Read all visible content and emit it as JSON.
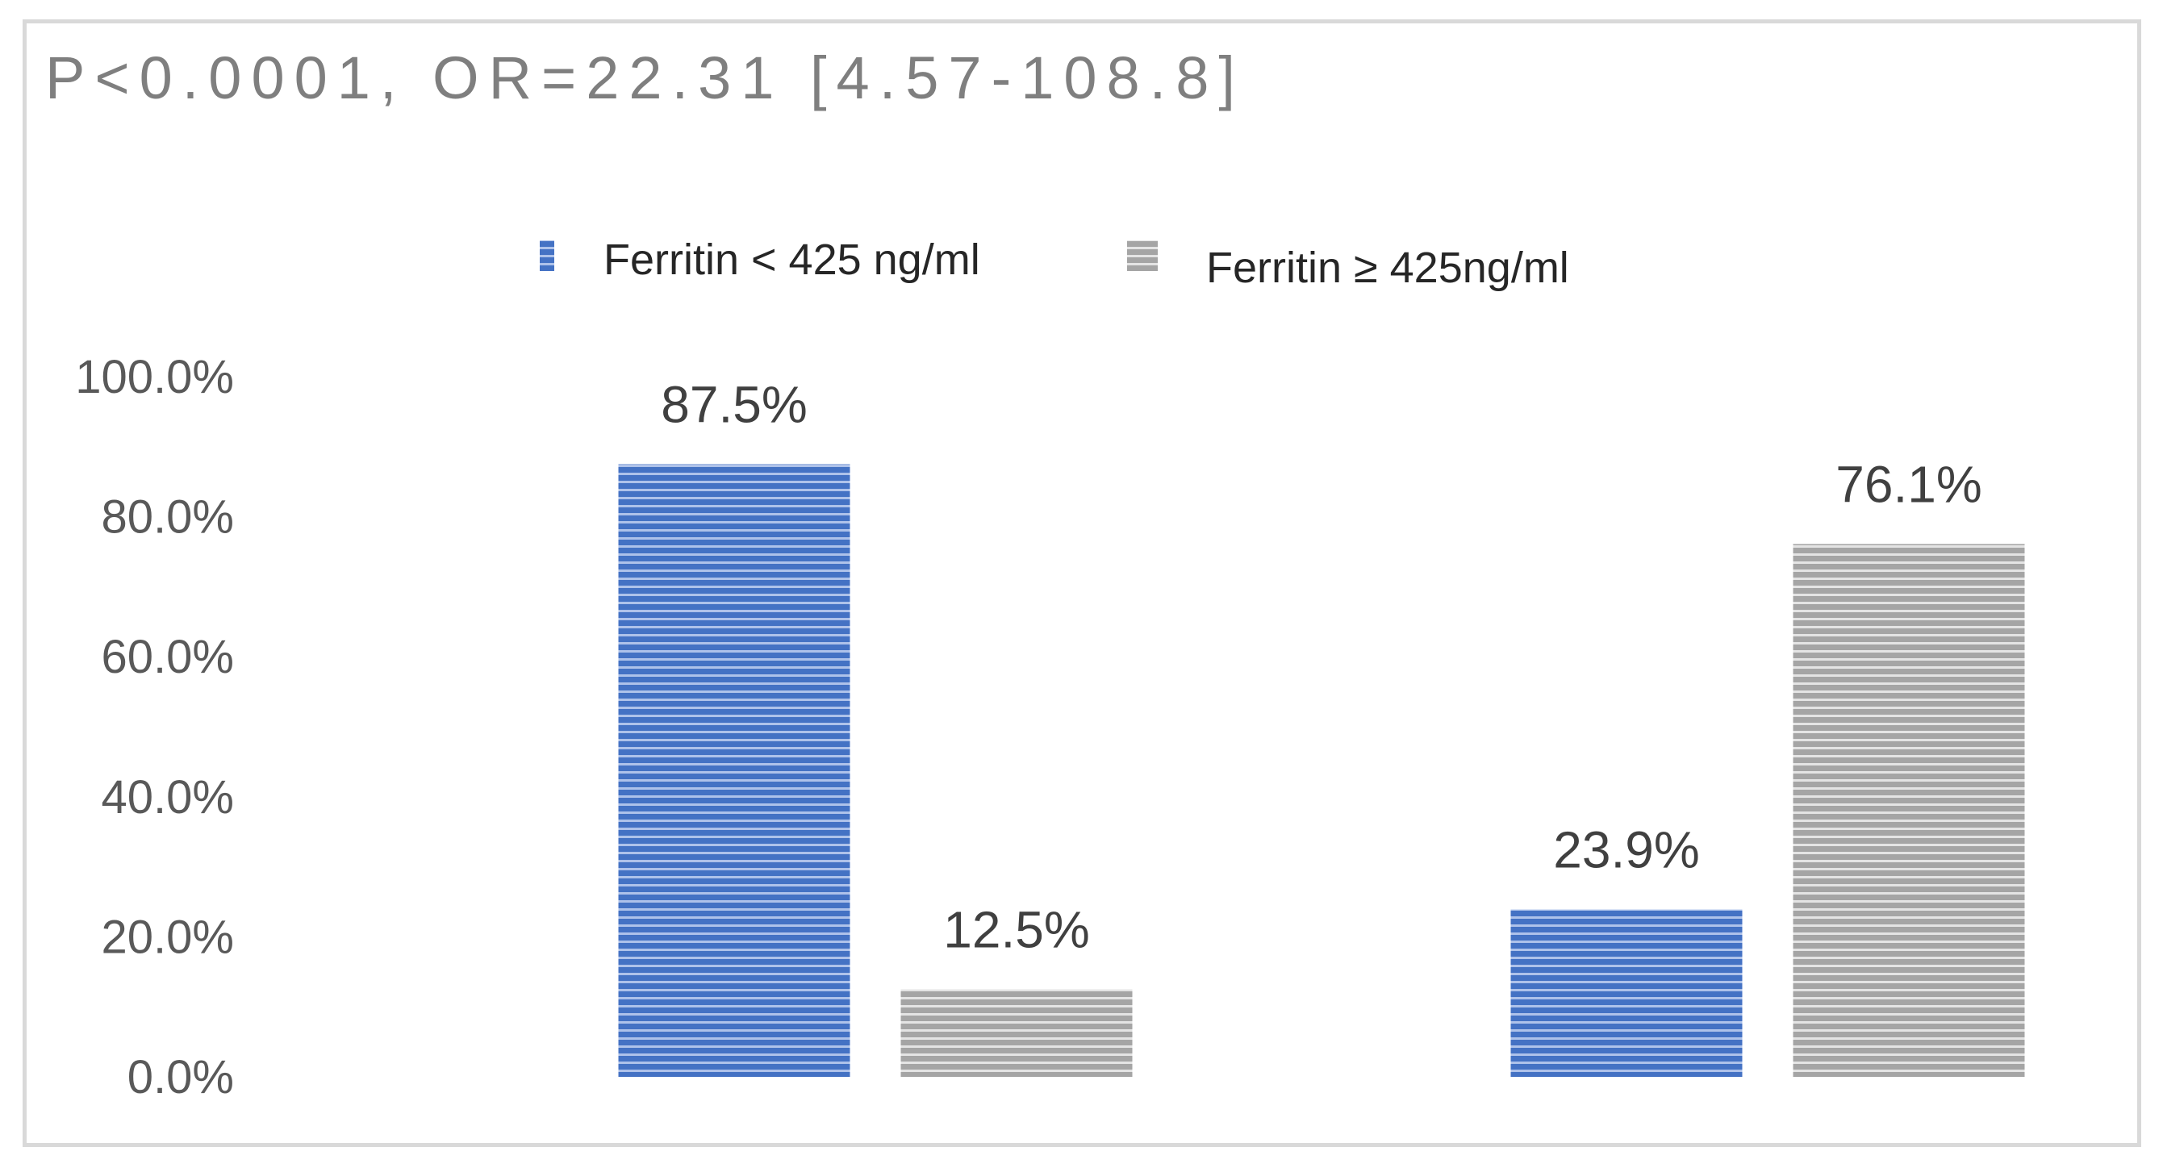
{
  "chart_data": {
    "type": "bar",
    "title": "P<0.0001, OR=22.31 [4.57-108.8]",
    "categories": [
      "",
      ""
    ],
    "series": [
      {
        "name": "Ferritin < 425 ng/ml",
        "values": [
          87.5,
          23.9
        ]
      },
      {
        "name": "Ferritin ≥ 425ng/ml",
        "values": [
          12.5,
          76.1
        ]
      }
    ],
    "data_labels": [
      [
        "87.5%",
        "23.9%"
      ],
      [
        "12.5%",
        "76.1%"
      ]
    ],
    "ylim": [
      0,
      100
    ],
    "yticks": [
      0,
      20,
      40,
      60,
      80,
      100
    ],
    "ytick_labels": [
      "0.0%",
      "20.0%",
      "40.0%",
      "60.0%",
      "80.0%",
      "100.0%"
    ],
    "xlabel": "",
    "ylabel": "",
    "grid": false,
    "legend_position": "top-center",
    "colors": {
      "series_1": "#4472c4",
      "series_1_stripe": "#aec2ea",
      "series_2": "#a5a5a5",
      "series_2_stripe": "#e4e4e4",
      "title_text": "#7f7f7f",
      "label_text": "#404040",
      "tick_text": "#595959",
      "frame": "#d9d9d9"
    }
  }
}
